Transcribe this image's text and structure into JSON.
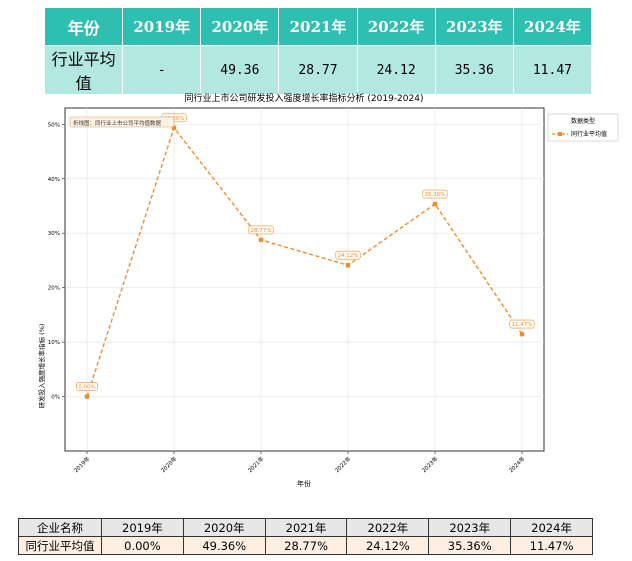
{
  "top_table": {
    "header": [
      "年份",
      "2019年",
      "2020年",
      "2021年",
      "2022年",
      "2023年",
      "2024年"
    ],
    "row": [
      "行业平均值",
      "-",
      "49.36",
      "28.77",
      "24.12",
      "35.36",
      "11.47"
    ]
  },
  "chart_data": {
    "type": "line",
    "title": "同行业上市公司研发投入强度增长率指标分析 (2019-2024)",
    "xlabel": "年份",
    "ylabel": "研发投入强度增长率指标 (%)",
    "categories": [
      "2019年",
      "2020年",
      "2021年",
      "2022年",
      "2023年",
      "2024年"
    ],
    "series": [
      {
        "name": "同行业平均值",
        "values": [
          0.0,
          49.36,
          28.77,
          24.12,
          35.36,
          11.47
        ],
        "labels": [
          "0.00%",
          "49.36%",
          "28.77%",
          "24.12%",
          "35.36%",
          "11.47%"
        ],
        "color": "#f28c28"
      }
    ],
    "yticks": [
      "0%",
      "10%",
      "20%",
      "30%",
      "40%",
      "50%"
    ],
    "ylim": [
      -10,
      53
    ],
    "grid": true,
    "legend": {
      "title": "数据类型",
      "placement": "outside-right"
    },
    "annotation": "折线图：同行业上市公司平均值数据"
  },
  "bottom_table": {
    "header": [
      "企业名称",
      "2019年",
      "2020年",
      "2021年",
      "2022年",
      "2023年",
      "2024年"
    ],
    "row": [
      "同行业平均值",
      "0.00%",
      "49.36%",
      "28.77%",
      "24.12%",
      "35.36%",
      "11.47%"
    ]
  }
}
